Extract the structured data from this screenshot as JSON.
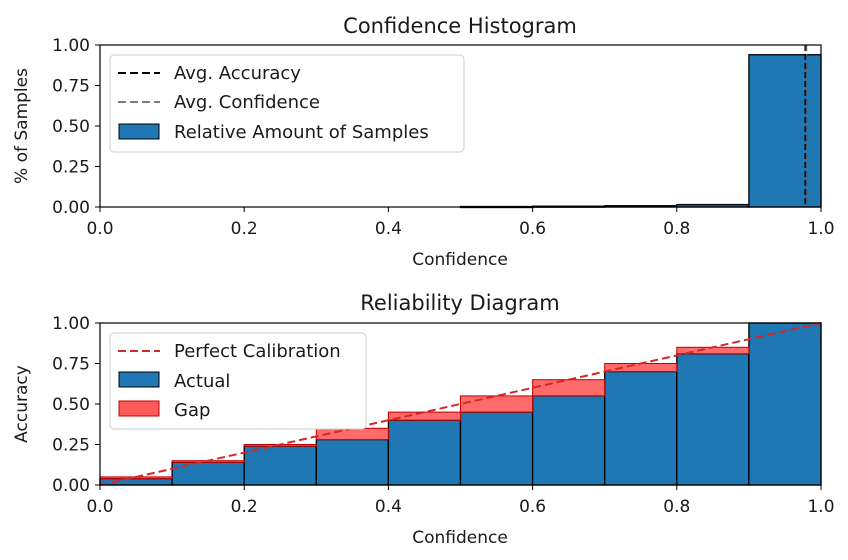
{
  "chart_data": [
    {
      "type": "bar",
      "title": "Confidence Histogram",
      "xlabel": "Confidence",
      "ylabel": "% of Samples",
      "xlim": [
        0.0,
        1.0
      ],
      "ylim": [
        0.0,
        1.0
      ],
      "xticks": [
        "0.0",
        "0.2",
        "0.4",
        "0.6",
        "0.8",
        "1.0"
      ],
      "yticks": [
        "0.00",
        "0.25",
        "0.50",
        "0.75",
        "1.00"
      ],
      "bin_edges": [
        0.0,
        0.1,
        0.2,
        0.3,
        0.4,
        0.5,
        0.6,
        0.7,
        0.8,
        0.9,
        1.0
      ],
      "series": [
        {
          "name": "Relative Amount of Samples",
          "values": [
            0,
            0,
            0,
            0,
            0,
            0.003,
            0.005,
            0.008,
            0.015,
            0.94
          ]
        }
      ],
      "lines": [
        {
          "name": "Avg. Accuracy",
          "x": 0.978,
          "style": "dashed",
          "color": "#000000"
        },
        {
          "name": "Avg. Confidence",
          "x": 0.98,
          "style": "dashed",
          "color": "#555555"
        }
      ],
      "legend": [
        "Avg. Accuracy",
        "Avg. Confidence",
        "Relative Amount of Samples"
      ],
      "legend_position": "upper-left"
    },
    {
      "type": "bar",
      "title": "Reliability Diagram",
      "xlabel": "Confidence",
      "ylabel": "Accuracy",
      "xlim": [
        0.0,
        1.0
      ],
      "ylim": [
        0.0,
        1.0
      ],
      "xticks": [
        "0.0",
        "0.2",
        "0.4",
        "0.6",
        "0.8",
        "1.0"
      ],
      "yticks": [
        "0.00",
        "0.25",
        "0.50",
        "0.75",
        "1.00"
      ],
      "bin_edges": [
        0.0,
        0.1,
        0.2,
        0.3,
        0.4,
        0.5,
        0.6,
        0.7,
        0.8,
        0.9,
        1.0
      ],
      "series": [
        {
          "name": "Actual",
          "values": [
            0.04,
            0.14,
            0.24,
            0.28,
            0.4,
            0.45,
            0.55,
            0.7,
            0.81,
            1.0
          ]
        },
        {
          "name": "Gap",
          "bottom": [
            0.04,
            0.14,
            0.24,
            0.28,
            0.4,
            0.45,
            0.55,
            0.7,
            0.81,
            1.0
          ],
          "top": [
            0.05,
            0.15,
            0.25,
            0.35,
            0.45,
            0.55,
            0.65,
            0.75,
            0.85,
            1.0
          ]
        }
      ],
      "lines": [
        {
          "name": "Perfect Calibration",
          "x": [
            0.0,
            1.0
          ],
          "y": [
            0.0,
            1.0
          ],
          "style": "dashed",
          "color": "#d62728"
        }
      ],
      "legend": [
        "Perfect Calibration",
        "Actual",
        "Gap"
      ],
      "legend_position": "upper-left"
    }
  ],
  "colors": {
    "bar": "#1f77b4",
    "gap": "#ff5a5a",
    "gap_edge": "#c00000",
    "calibration": "#d62728",
    "edge": "#000000"
  }
}
